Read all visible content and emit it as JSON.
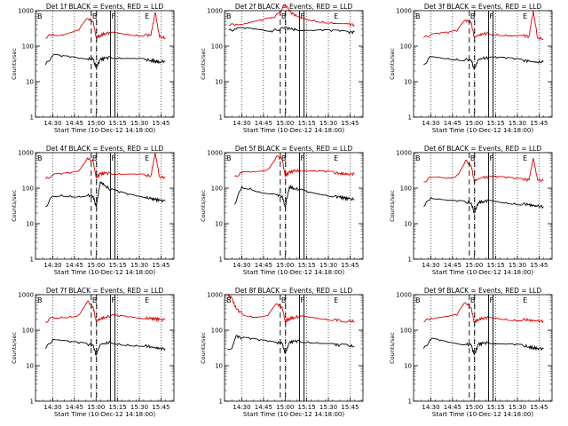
{
  "figure": {
    "series_names": [
      "BLACK = Events",
      "RED = LLD"
    ],
    "ylabel": "Counts/sec",
    "xlabel": "Start Time (10-Dec-12 14:18:00)",
    "x_tick_labels": [
      "14:30",
      "14:45",
      "15:00",
      "15:15",
      "15:30",
      "15:45"
    ],
    "y_tick_labels": [
      "1",
      "10",
      "100",
      "1000"
    ],
    "marker_labels": [
      "B",
      "F",
      "E"
    ],
    "colors": {
      "events": "#000000",
      "lld": "#e00000"
    }
  },
  "chart_data": [
    {
      "type": "line",
      "title": "Det 1f BLACK = Events, RED = LLD",
      "x_unit": "minutes after 14:18:00",
      "xlim": [
        0,
        96
      ],
      "ylim": [
        1,
        1000
      ],
      "y_scale": "log",
      "x": [
        7,
        12,
        18,
        24,
        30,
        36,
        40,
        42,
        45,
        48,
        52,
        58,
        64,
        70,
        76,
        80,
        83,
        86,
        90
      ],
      "series": [
        {
          "name": "Events",
          "color": "#000000",
          "values": [
            30,
            55,
            50,
            48,
            45,
            44,
            42,
            25,
            42,
            45,
            50,
            48,
            46,
            44,
            42,
            40,
            38,
            36,
            38
          ]
        },
        {
          "name": "LLD",
          "color": "#e00000",
          "values": [
            170,
            220,
            210,
            240,
            280,
            600,
            500,
            180,
            200,
            230,
            240,
            230,
            220,
            210,
            210,
            200,
            900,
            180,
            170
          ]
        }
      ],
      "annotations": {
        "B": 40.5,
        "F": 52,
        "E": 77
      }
    },
    {
      "type": "line",
      "title": "Det 2f BLACK = Events, RED = LLD",
      "x_unit": "minutes after 14:18:00",
      "xlim": [
        0,
        96
      ],
      "ylim": [
        1,
        1000
      ],
      "y_scale": "log",
      "x": [
        3,
        8,
        14,
        20,
        26,
        32,
        37,
        42,
        46,
        50,
        56,
        62,
        68,
        74,
        80,
        86,
        90
      ],
      "series": [
        {
          "name": "Events",
          "color": "#000000",
          "values": [
            280,
            300,
            310,
            300,
            290,
            270,
            280,
            340,
            300,
            290,
            280,
            270,
            270,
            260,
            260,
            250,
            250
          ]
        },
        {
          "name": "LLD",
          "color": "#e00000",
          "values": [
            380,
            420,
            430,
            480,
            520,
            600,
            800,
            1500,
            900,
            700,
            600,
            550,
            500,
            470,
            440,
            420,
            400
          ]
        }
      ],
      "annotations": {
        "B": 40.5,
        "F": 52,
        "E": 77
      }
    },
    {
      "type": "line",
      "title": "Det 3f BLACK = Events, RED = LLD",
      "x_unit": "minutes after 14:18:00",
      "xlim": [
        0,
        96
      ],
      "ylim": [
        1,
        1000
      ],
      "y_scale": "log",
      "x": [
        7,
        12,
        18,
        24,
        30,
        36,
        40,
        42,
        45,
        48,
        52,
        58,
        64,
        70,
        76,
        80,
        83,
        86,
        90
      ],
      "series": [
        {
          "name": "Events",
          "color": "#000000",
          "values": [
            30,
            50,
            48,
            46,
            44,
            42,
            40,
            22,
            42,
            45,
            48,
            46,
            44,
            42,
            40,
            38,
            36,
            35,
            36
          ]
        },
        {
          "name": "LLD",
          "color": "#e00000",
          "values": [
            170,
            210,
            220,
            230,
            260,
            550,
            450,
            180,
            200,
            220,
            230,
            220,
            210,
            200,
            200,
            190,
            1000,
            170,
            160
          ]
        }
      ],
      "annotations": {
        "B": 40.5,
        "F": 52,
        "E": 77
      }
    },
    {
      "type": "line",
      "title": "Det 4f BLACK = Events, RED = LLD",
      "x_unit": "minutes after 14:18:00",
      "xlim": [
        0,
        96
      ],
      "ylim": [
        1,
        1000
      ],
      "y_scale": "log",
      "x": [
        7,
        12,
        18,
        24,
        30,
        36,
        40,
        42,
        45,
        48,
        52,
        58,
        64,
        70,
        76,
        80,
        83,
        86,
        90
      ],
      "series": [
        {
          "name": "Events",
          "color": "#000000",
          "values": [
            30,
            60,
            65,
            62,
            60,
            62,
            60,
            30,
            150,
            120,
            90,
            75,
            65,
            60,
            55,
            50,
            48,
            45,
            44
          ]
        },
        {
          "name": "LLD",
          "color": "#e00000",
          "values": [
            180,
            230,
            240,
            260,
            300,
            700,
            550,
            200,
            250,
            260,
            270,
            260,
            250,
            240,
            230,
            220,
            1000,
            210,
            200
          ]
        }
      ],
      "annotations": {
        "B": 40.5,
        "F": 52,
        "E": 77
      }
    },
    {
      "type": "line",
      "title": "Det 5f BLACK = Events, RED = LLD",
      "x_unit": "minutes after 14:18:00",
      "xlim": [
        0,
        96
      ],
      "ylim": [
        1,
        1000
      ],
      "y_scale": "log",
      "x": [
        7,
        12,
        18,
        24,
        30,
        36,
        40,
        42,
        45,
        48,
        52,
        58,
        64,
        70,
        76,
        80,
        83,
        86,
        90
      ],
      "series": [
        {
          "name": "Events",
          "color": "#000000",
          "values": [
            35,
            110,
            100,
            80,
            70,
            65,
            60,
            30,
            110,
            100,
            90,
            75,
            70,
            65,
            60,
            55,
            52,
            50,
            48
          ]
        },
        {
          "name": "LLD",
          "color": "#e00000",
          "values": [
            210,
            270,
            280,
            300,
            340,
            800,
            650,
            220,
            280,
            300,
            310,
            300,
            290,
            280,
            270,
            260,
            255,
            250,
            250
          ]
        }
      ],
      "annotations": {
        "B": 40.5,
        "F": 52,
        "E": 77
      }
    },
    {
      "type": "line",
      "title": "Det 6f BLACK = Events, RED = LLD",
      "x_unit": "minutes after 14:18:00",
      "xlim": [
        0,
        96
      ],
      "ylim": [
        1,
        1000
      ],
      "y_scale": "log",
      "x": [
        7,
        12,
        18,
        24,
        30,
        36,
        40,
        42,
        45,
        48,
        52,
        58,
        64,
        70,
        76,
        80,
        83,
        86,
        90
      ],
      "series": [
        {
          "name": "Events",
          "color": "#000000",
          "values": [
            30,
            55,
            50,
            45,
            42,
            40,
            38,
            20,
            40,
            42,
            45,
            42,
            40,
            38,
            36,
            34,
            32,
            31,
            30
          ]
        },
        {
          "name": "LLD",
          "color": "#e00000",
          "values": [
            150,
            200,
            210,
            200,
            230,
            600,
            420,
            160,
            180,
            200,
            210,
            200,
            190,
            180,
            180,
            170,
            700,
            170,
            160
          ]
        }
      ],
      "annotations": {
        "B": 40.5,
        "F": 52,
        "E": 77
      }
    },
    {
      "type": "line",
      "title": "Det 7f BLACK = Events, RED = LLD",
      "x_unit": "minutes after 14:18:00",
      "xlim": [
        0,
        96
      ],
      "ylim": [
        1,
        1000
      ],
      "y_scale": "log",
      "x": [
        7,
        12,
        18,
        24,
        30,
        36,
        40,
        42,
        45,
        48,
        52,
        58,
        64,
        70,
        76,
        80,
        83,
        86,
        90
      ],
      "series": [
        {
          "name": "Events",
          "color": "#000000",
          "values": [
            30,
            55,
            50,
            45,
            42,
            40,
            38,
            20,
            40,
            42,
            45,
            42,
            40,
            38,
            36,
            34,
            32,
            31,
            30
          ]
        },
        {
          "name": "LLD",
          "color": "#e00000",
          "values": [
            170,
            230,
            240,
            250,
            270,
            650,
            450,
            180,
            210,
            230,
            250,
            240,
            230,
            220,
            215,
            210,
            205,
            200,
            200
          ]
        }
      ],
      "annotations": {
        "B": 40.5,
        "F": 52,
        "E": 77
      }
    },
    {
      "type": "line",
      "title": "Det 8f BLACK = Events, RED = LLD",
      "x_unit": "minutes after 14:18:00",
      "xlim": [
        0,
        96
      ],
      "ylim": [
        1,
        1000
      ],
      "y_scale": "log",
      "x": [
        2,
        5,
        8,
        12,
        18,
        24,
        30,
        36,
        40,
        42,
        45,
        48,
        52,
        58,
        64,
        70,
        76,
        80,
        86,
        90
      ],
      "series": [
        {
          "name": "Events",
          "color": "#000000",
          "values": [
            28,
            30,
            70,
            60,
            55,
            50,
            48,
            45,
            42,
            22,
            45,
            48,
            50,
            48,
            45,
            42,
            40,
            38,
            36,
            35
          ]
        },
        {
          "name": "LLD",
          "color": "#e00000",
          "values": [
            1000,
            800,
            400,
            300,
            250,
            240,
            260,
            550,
            450,
            180,
            210,
            230,
            240,
            230,
            220,
            210,
            200,
            190,
            180,
            175
          ]
        }
      ],
      "annotations": {
        "B": 40.5,
        "F": 52,
        "E": 77
      }
    },
    {
      "type": "line",
      "title": "Det 9f BLACK = Events, RED = LLD",
      "x_unit": "minutes after 14:18:00",
      "xlim": [
        0,
        96
      ],
      "ylim": [
        1,
        1000
      ],
      "y_scale": "log",
      "x": [
        7,
        12,
        18,
        24,
        30,
        36,
        40,
        42,
        45,
        48,
        52,
        58,
        64,
        70,
        76,
        80,
        83,
        86,
        90
      ],
      "series": [
        {
          "name": "Events",
          "color": "#000000",
          "values": [
            30,
            55,
            50,
            45,
            42,
            40,
            38,
            20,
            40,
            42,
            45,
            42,
            40,
            38,
            36,
            34,
            32,
            31,
            30
          ]
        },
        {
          "name": "LLD",
          "color": "#e00000",
          "values": [
            170,
            220,
            230,
            240,
            260,
            600,
            420,
            170,
            200,
            220,
            230,
            220,
            210,
            200,
            200,
            190,
            185,
            180,
            180
          ]
        }
      ],
      "annotations": {
        "B": 40.5,
        "F": 52,
        "E": 77
      }
    }
  ]
}
